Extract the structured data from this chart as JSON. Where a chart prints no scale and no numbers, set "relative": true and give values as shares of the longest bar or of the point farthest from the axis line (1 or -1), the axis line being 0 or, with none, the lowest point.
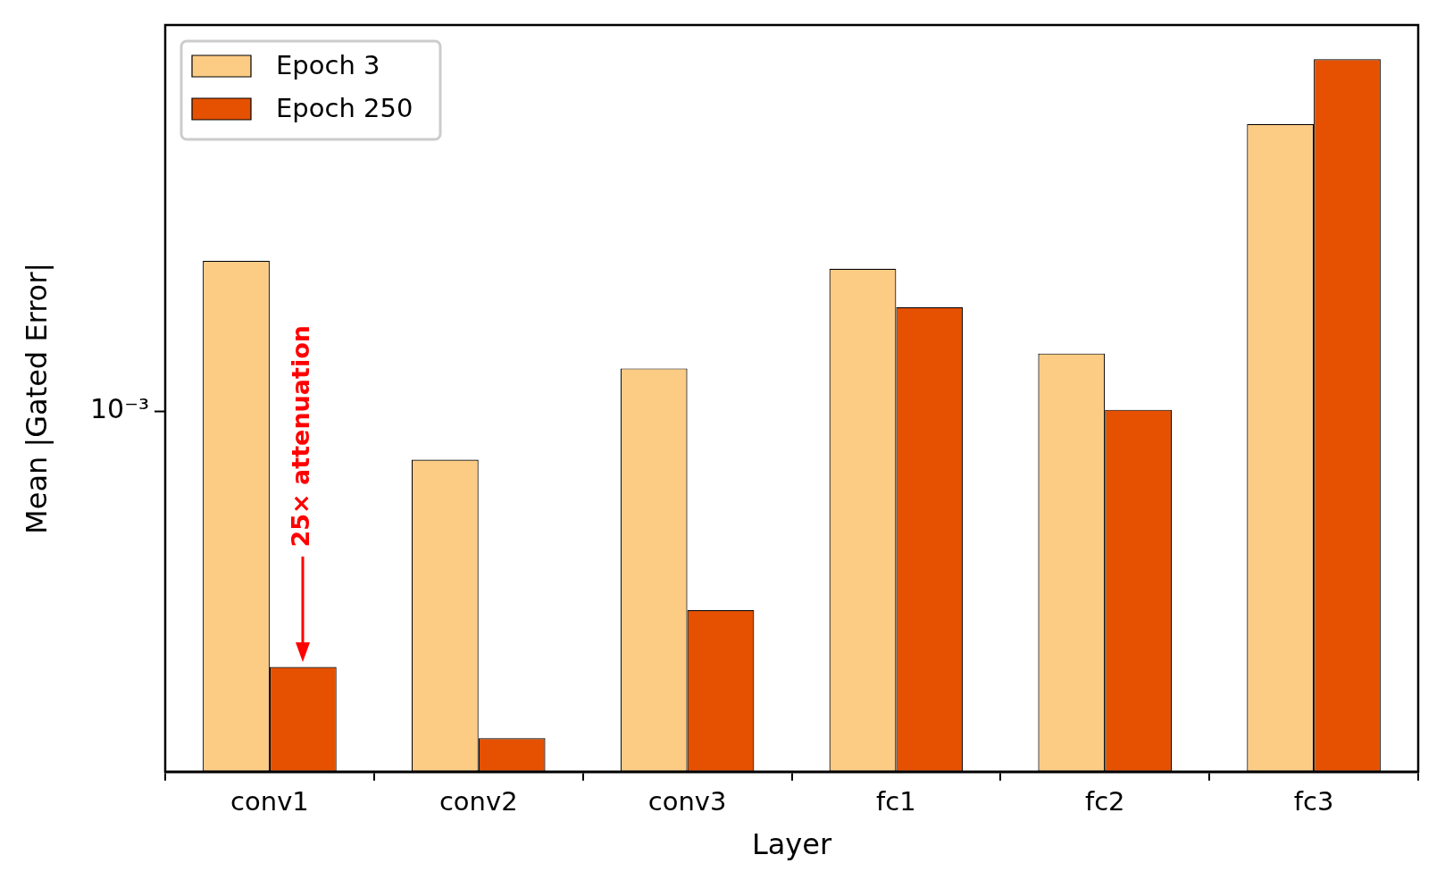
{
  "chart_data": {
    "type": "bar",
    "xlabel": "Layer",
    "ylabel": "Mean |Gated Error|",
    "categories": [
      "conv1",
      "conv2",
      "conv3",
      "fc1",
      "fc2",
      "fc3"
    ],
    "relative": true,
    "series": [
      {
        "name": "Epoch 3",
        "color": "#fdcc84",
        "values": [
          0.717,
          0.438,
          0.566,
          0.706,
          0.587,
          0.909
        ]
      },
      {
        "name": "Epoch 250",
        "color": "#e55100",
        "values": [
          0.147,
          0.047,
          0.227,
          0.652,
          0.508,
          1
        ]
      }
    ],
    "legend": "top left",
    "grid": false,
    "annotations": [
      "10⁻³",
      "25× attenuation"
    ]
  }
}
